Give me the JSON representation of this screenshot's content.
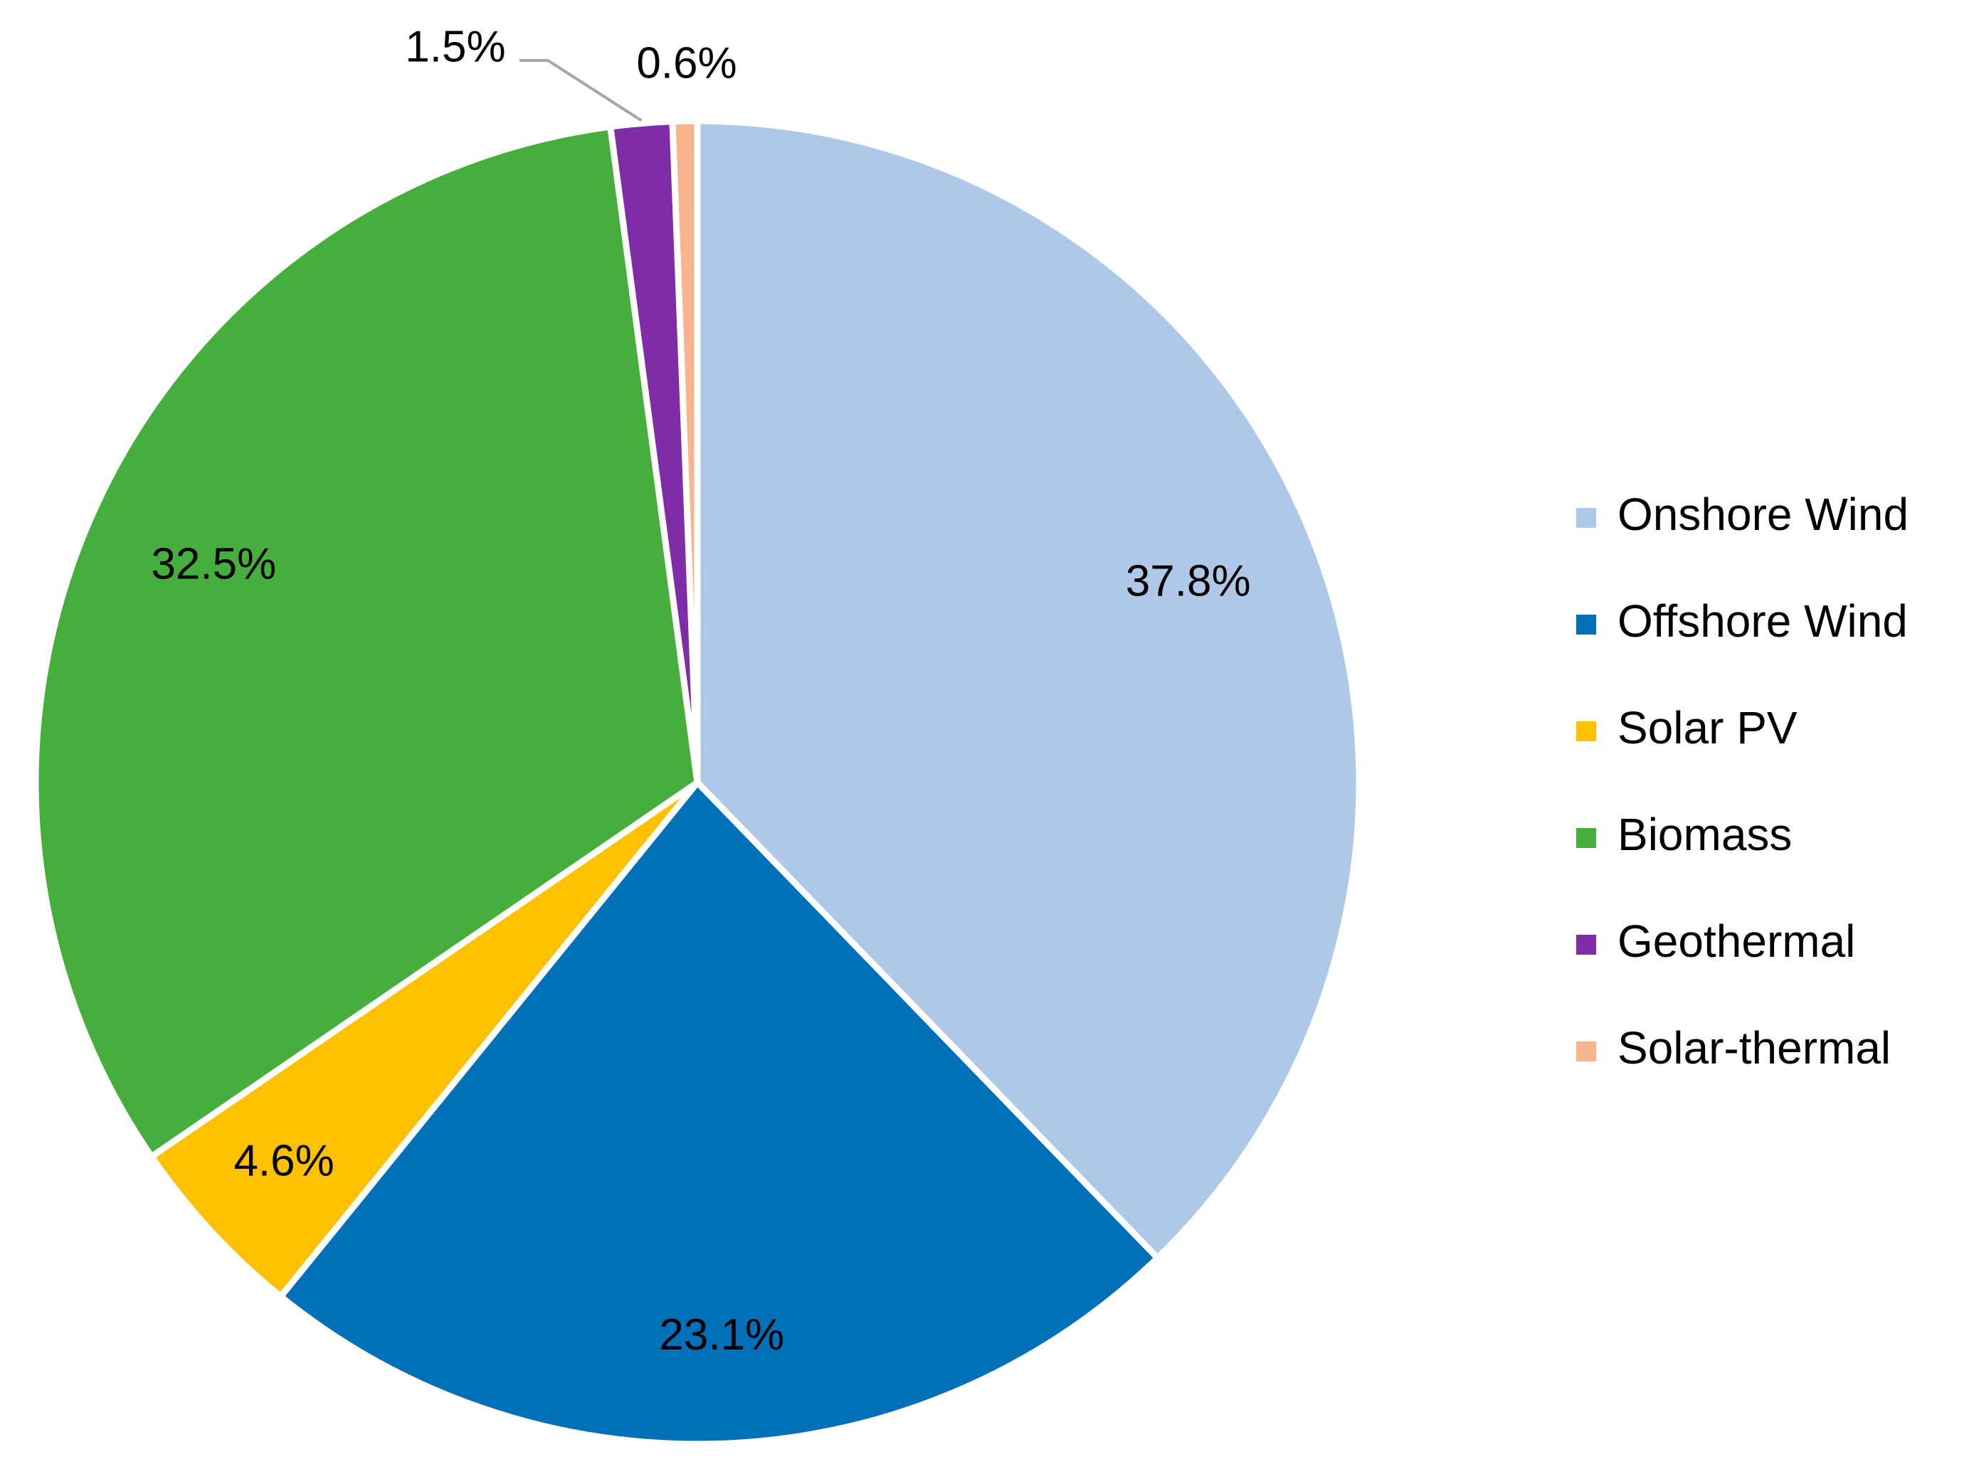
{
  "chart_data": {
    "type": "pie",
    "title": "",
    "slices": [
      {
        "name": "Onshore Wind",
        "value": 37.8,
        "label": "37.8%",
        "color": "#AFC8E8"
      },
      {
        "name": "Offshore Wind",
        "value": 23.1,
        "label": "23.1%",
        "color": "#0070B8"
      },
      {
        "name": "Solar PV",
        "value": 4.6,
        "label": "4.6%",
        "color": "#FFC000"
      },
      {
        "name": "Biomass",
        "value": 32.5,
        "label": "32.5%",
        "color": "#46AE3C"
      },
      {
        "name": "Geothermal",
        "value": 1.5,
        "label": "1.5%",
        "color": "#7E2CA8"
      },
      {
        "name": "Solar-thermal",
        "value": 0.6,
        "label": "0.6%",
        "color": "#F8B48C"
      }
    ],
    "start_angle": "12 o'clock",
    "direction": "clockwise",
    "legend_position": "right"
  }
}
